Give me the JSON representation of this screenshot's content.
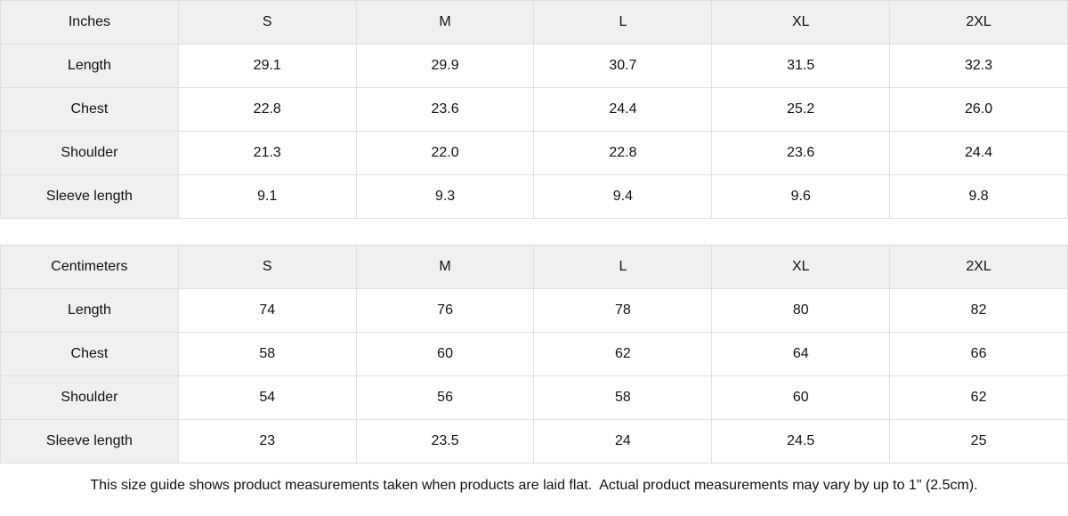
{
  "colors": {
    "header_bg": "#f0f0f0",
    "cell_bg": "#ffffff",
    "border": "#e0e0e0",
    "text": "#111111"
  },
  "tables": [
    {
      "unit_label": "Inches",
      "sizes": [
        "S",
        "M",
        "L",
        "XL",
        "2XL"
      ],
      "rows": [
        {
          "label": "Length",
          "values": [
            "29.1",
            "29.9",
            "30.7",
            "31.5",
            "32.3"
          ]
        },
        {
          "label": "Chest",
          "values": [
            "22.8",
            "23.6",
            "24.4",
            "25.2",
            "26.0"
          ]
        },
        {
          "label": "Shoulder",
          "values": [
            "21.3",
            "22.0",
            "22.8",
            "23.6",
            "24.4"
          ]
        },
        {
          "label": "Sleeve length",
          "values": [
            "9.1",
            "9.3",
            "9.4",
            "9.6",
            "9.8"
          ]
        }
      ]
    },
    {
      "unit_label": "Centimeters",
      "sizes": [
        "S",
        "M",
        "L",
        "XL",
        "2XL"
      ],
      "rows": [
        {
          "label": "Length",
          "values": [
            "74",
            "76",
            "78",
            "80",
            "82"
          ]
        },
        {
          "label": "Chest",
          "values": [
            "58",
            "60",
            "62",
            "64",
            "66"
          ]
        },
        {
          "label": "Shoulder",
          "values": [
            "54",
            "56",
            "58",
            "60",
            "62"
          ]
        },
        {
          "label": "Sleeve length",
          "values": [
            "23",
            "23.5",
            "24",
            "24.5",
            "25"
          ]
        }
      ]
    }
  ],
  "footer": {
    "note": "This size guide shows product measurements taken when products are laid flat.  Actual product measurements may vary by up to 1\" (2.5cm)."
  }
}
